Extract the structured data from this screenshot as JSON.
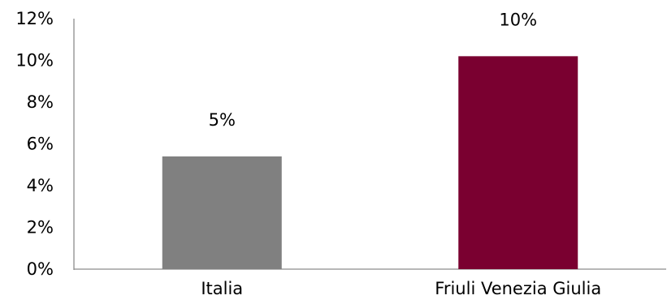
{
  "chart_data": {
    "type": "bar",
    "categories": [
      "Italia",
      "Friuli Venezia Giulia"
    ],
    "values": [
      5.4,
      10.2
    ],
    "data_labels": [
      "5%",
      "10%"
    ],
    "colors": [
      "#808080",
      "#7a0030"
    ],
    "title": "",
    "xlabel": "",
    "ylabel": "",
    "ylim": [
      0,
      12
    ],
    "yticks": [
      0,
      2,
      4,
      6,
      8,
      10,
      12
    ],
    "ytick_labels": [
      "0%",
      "2%",
      "4%",
      "6%",
      "8%",
      "10%",
      "12%"
    ],
    "grid": false,
    "legend": "none"
  }
}
